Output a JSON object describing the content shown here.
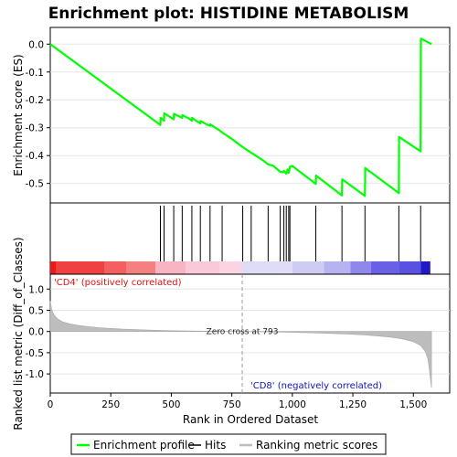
{
  "chart_data": {
    "type": "line",
    "title": "Enrichment plot: HISTIDINE METABOLISM",
    "xlabel": "Rank in Ordered Dataset",
    "xlim": [
      0,
      1650
    ],
    "x_ticks": [
      "0",
      "250",
      "500",
      "750",
      "1,000",
      "1,250",
      "1,500"
    ],
    "x_tick_values": [
      0,
      250,
      500,
      750,
      1000,
      1250,
      1500
    ],
    "panels": {
      "enrichment": {
        "ylabel": "Enrichment score (ES)",
        "ylim": [
          -0.57,
          0.06
        ],
        "y_ticks": [
          "0.0",
          "-0.1",
          "-0.2",
          "-0.3",
          "-0.4",
          "-0.5"
        ],
        "y_tick_values": [
          0.0,
          -0.1,
          -0.2,
          -0.3,
          -0.4,
          -0.5
        ],
        "color": "#00ff00",
        "series": [
          {
            "name": "Enrichment profile",
            "x": [
              0,
              455,
              456,
              470,
              471,
              495,
              510,
              511,
              545,
              546,
              575,
              585,
              586,
              620,
              621,
              650,
              660,
              661,
              700,
              710,
              750,
              795,
              830,
              880,
              900,
              920,
              950,
              960,
              965,
              975,
              980,
              985,
              990,
              1000,
              1097,
              1098,
              1205,
              1206,
              1300,
              1301,
              1440,
              1441,
              1530,
              1531,
              1575
            ],
            "y": [
              0.0,
              -0.29,
              -0.265,
              -0.275,
              -0.248,
              -0.262,
              -0.27,
              -0.25,
              -0.265,
              -0.255,
              -0.268,
              -0.275,
              -0.265,
              -0.285,
              -0.276,
              -0.29,
              -0.293,
              -0.288,
              -0.31,
              -0.317,
              -0.34,
              -0.37,
              -0.39,
              -0.418,
              -0.432,
              -0.436,
              -0.458,
              -0.46,
              -0.455,
              -0.465,
              -0.45,
              -0.462,
              -0.44,
              -0.437,
              -0.502,
              -0.472,
              -0.543,
              -0.485,
              -0.545,
              -0.445,
              -0.535,
              -0.333,
              -0.385,
              0.02,
              0.0
            ]
          }
        ]
      },
      "hits": {
        "name": "Hits",
        "positions": [
          455,
          470,
          510,
          545,
          585,
          620,
          660,
          710,
          795,
          830,
          900,
          950,
          965,
          975,
          985,
          990,
          1097,
          1205,
          1300,
          1440,
          1530
        ]
      },
      "ranked_metric": {
        "ylabel": "Ranked list metric (Diff_of_Classes)",
        "ylim": [
          -1.45,
          1.35
        ],
        "y_ticks": [
          "1.0",
          "0.5",
          "0.0",
          "-0.5",
          "-1.0"
        ],
        "y_tick_values": [
          1.0,
          0.5,
          0.0,
          -0.5,
          -1.0
        ],
        "legend_name": "Ranking metric scores",
        "fill_color": "#bdbdbd",
        "x": [
          0,
          5,
          10,
          20,
          30,
          50,
          80,
          120,
          200,
          300,
          400,
          500,
          600,
          700,
          793,
          900,
          1000,
          1100,
          1200,
          1300,
          1400,
          1450,
          1500,
          1530,
          1550,
          1560,
          1565,
          1570,
          1575
        ],
        "values": [
          0.72,
          0.55,
          0.45,
          0.36,
          0.3,
          0.23,
          0.18,
          0.14,
          0.09,
          0.055,
          0.035,
          0.02,
          0.01,
          0.003,
          0.0,
          -0.008,
          -0.02,
          -0.035,
          -0.055,
          -0.08,
          -0.13,
          -0.17,
          -0.24,
          -0.33,
          -0.48,
          -0.65,
          -0.85,
          -1.1,
          -1.33
        ],
        "zero_cross_label": "Zero cross at 793",
        "zero_cross_x": 793,
        "pos_label": "'CD4' (positively correlated)",
        "neg_label": "'CD8' (negatively correlated)"
      }
    },
    "heatbar": [
      {
        "x0": 0,
        "x1": 25,
        "color": "#e81a1a"
      },
      {
        "x0": 25,
        "x1": 225,
        "color": "#f04040"
      },
      {
        "x0": 225,
        "x1": 315,
        "color": "#f46060"
      },
      {
        "x0": 315,
        "x1": 435,
        "color": "#f58080"
      },
      {
        "x0": 435,
        "x1": 560,
        "color": "#f9b4c4"
      },
      {
        "x0": 560,
        "x1": 700,
        "color": "#fac8d8"
      },
      {
        "x0": 700,
        "x1": 793,
        "color": "#fad4e2"
      },
      {
        "x0": 793,
        "x1": 1000,
        "color": "#dedcf7"
      },
      {
        "x0": 1000,
        "x1": 1130,
        "color": "#cfccf4"
      },
      {
        "x0": 1130,
        "x1": 1240,
        "color": "#b7b3f0"
      },
      {
        "x0": 1240,
        "x1": 1325,
        "color": "#8f88ea"
      },
      {
        "x0": 1325,
        "x1": 1440,
        "color": "#6a60e6"
      },
      {
        "x0": 1440,
        "x1": 1530,
        "color": "#5a50e2"
      },
      {
        "x0": 1530,
        "x1": 1570,
        "color": "#2218c8"
      }
    ],
    "legend": [
      {
        "name": "Enrichment profile",
        "color": "#00ff00"
      },
      {
        "name": "Hits",
        "color": "#000000"
      },
      {
        "name": "Ranking metric scores",
        "color": "#bdbdbd"
      }
    ]
  }
}
